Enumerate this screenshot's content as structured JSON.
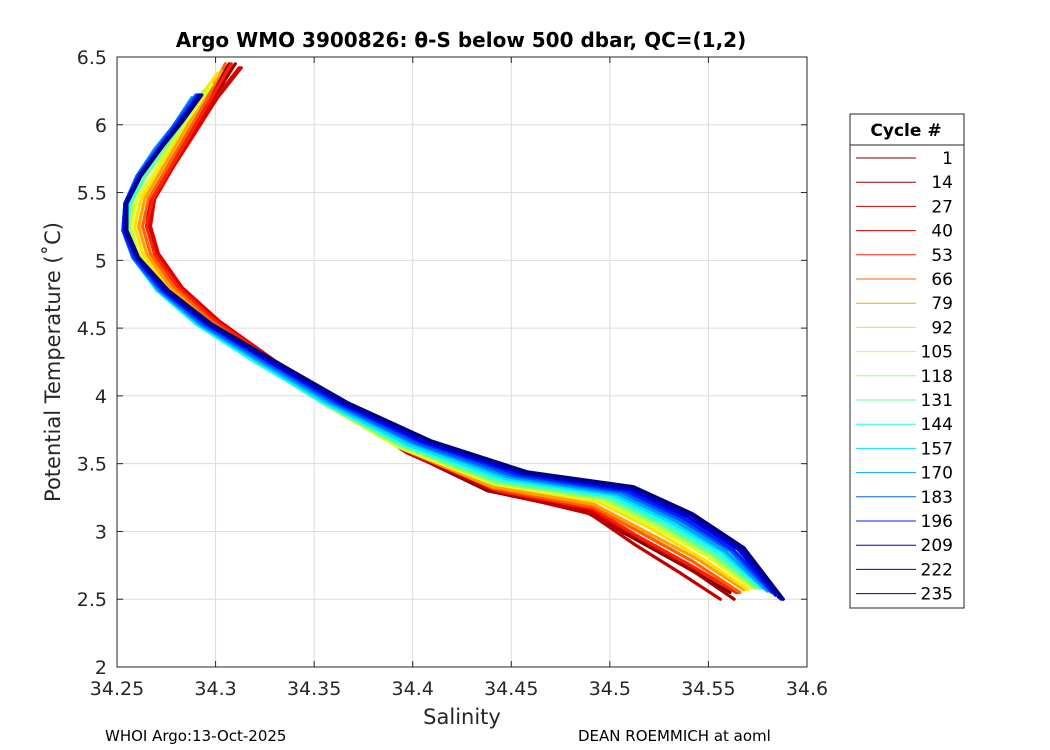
{
  "chart_data": {
    "type": "line",
    "title": "Argo WMO 3900826: θ-S below 500 dbar,  QC=(1,2)",
    "xlabel": "Salinity",
    "ylabel": "Potential Temperature (˚C)",
    "xlim": [
      34.25,
      34.6
    ],
    "ylim": [
      2,
      6.5
    ],
    "xticks": [
      34.25,
      34.3,
      34.35,
      34.4,
      34.45,
      34.5,
      34.55,
      34.6
    ],
    "xtick_labels": [
      "34.25",
      "34.3",
      "34.35",
      "34.4",
      "34.45",
      "34.5",
      "34.55",
      "34.6"
    ],
    "yticks": [
      2,
      2.5,
      3,
      3.5,
      4,
      4.5,
      5,
      5.5,
      6,
      6.5
    ],
    "ytick_labels": [
      "2",
      "2.5",
      "3",
      "3.5",
      "4",
      "4.5",
      "5",
      "5.5",
      "6",
      "6.5"
    ],
    "grid": true,
    "legend_title": "Cycle #",
    "legend_position": "outside-right",
    "colormap": "jet",
    "series": [
      {
        "name": "1",
        "color": "#800000",
        "salinity": [
          34.307,
          34.296,
          34.287,
          34.276,
          34.267,
          34.265,
          34.269,
          34.281,
          34.3,
          34.328,
          34.358,
          34.395,
          34.438,
          34.487,
          34.512,
          34.537,
          34.561
        ],
        "theta": [
          6.45,
          6.2,
          5.95,
          5.7,
          5.45,
          5.25,
          5.05,
          4.8,
          4.55,
          4.25,
          3.95,
          3.6,
          3.3,
          3.15,
          2.95,
          2.75,
          2.55
        ]
      },
      {
        "name": "14",
        "color": "#A00000",
        "salinity": [
          34.31,
          34.299,
          34.289,
          34.278,
          34.268,
          34.266,
          34.27,
          34.282,
          34.301,
          34.329,
          34.359,
          34.396,
          34.44,
          34.489,
          34.514,
          34.538,
          34.563
        ],
        "theta": [
          6.45,
          6.2,
          5.95,
          5.7,
          5.45,
          5.25,
          5.05,
          4.8,
          4.55,
          4.25,
          3.95,
          3.6,
          3.3,
          3.15,
          2.95,
          2.75,
          2.5
        ]
      },
      {
        "name": "27",
        "color": "#C00000",
        "salinity": [
          34.313,
          34.301,
          34.29,
          34.279,
          34.268,
          34.265,
          34.27,
          34.282,
          34.302,
          34.33,
          34.36,
          34.397,
          34.441,
          34.49,
          34.513,
          34.535,
          34.556
        ],
        "theta": [
          6.42,
          6.2,
          5.95,
          5.7,
          5.45,
          5.25,
          5.05,
          4.8,
          4.55,
          4.25,
          3.95,
          3.58,
          3.3,
          3.13,
          2.9,
          2.7,
          2.5
        ]
      },
      {
        "name": "40",
        "color": "#E00000",
        "salinity": [
          34.312,
          34.3,
          34.29,
          34.279,
          34.269,
          34.267,
          34.271,
          34.283,
          34.302,
          34.331,
          34.362,
          34.4,
          34.443,
          34.49,
          34.515,
          34.54,
          34.565
        ],
        "theta": [
          6.42,
          6.2,
          5.95,
          5.7,
          5.45,
          5.25,
          5.05,
          4.8,
          4.55,
          4.25,
          3.95,
          3.6,
          3.32,
          3.16,
          2.95,
          2.75,
          2.55
        ]
      },
      {
        "name": "53",
        "color": "#FF2000",
        "salinity": [
          34.308,
          34.298,
          34.288,
          34.278,
          34.268,
          34.265,
          34.269,
          34.281,
          34.3,
          34.33,
          34.362,
          34.399,
          34.443,
          34.491,
          34.516,
          34.541,
          34.564
        ],
        "theta": [
          6.45,
          6.2,
          5.95,
          5.7,
          5.45,
          5.25,
          5.05,
          4.8,
          4.55,
          4.25,
          3.95,
          3.6,
          3.3,
          3.17,
          2.95,
          2.75,
          2.55
        ]
      },
      {
        "name": "66",
        "color": "#FF6000",
        "salinity": [
          34.305,
          34.296,
          34.286,
          34.276,
          34.266,
          34.263,
          34.267,
          34.279,
          34.298,
          34.327,
          34.358,
          34.396,
          34.441,
          34.492,
          34.517,
          34.542,
          34.566
        ],
        "theta": [
          6.45,
          6.2,
          5.95,
          5.7,
          5.45,
          5.25,
          5.05,
          4.8,
          4.55,
          4.25,
          3.95,
          3.6,
          3.32,
          3.18,
          2.98,
          2.78,
          2.55
        ]
      },
      {
        "name": "79",
        "color": "#FFA000",
        "salinity": [
          34.303,
          34.294,
          34.284,
          34.274,
          34.264,
          34.261,
          34.265,
          34.277,
          34.296,
          34.325,
          34.356,
          34.394,
          34.44,
          34.492,
          34.518,
          34.544,
          34.568
        ],
        "theta": [
          6.4,
          6.2,
          5.95,
          5.7,
          5.45,
          5.25,
          5.05,
          4.8,
          4.55,
          4.25,
          3.95,
          3.62,
          3.33,
          3.2,
          3.0,
          2.8,
          2.57
        ]
      },
      {
        "name": "92",
        "color": "#FFE000",
        "salinity": [
          34.301,
          34.292,
          34.282,
          34.272,
          34.262,
          34.259,
          34.263,
          34.275,
          34.294,
          34.323,
          34.355,
          34.394,
          34.441,
          34.494,
          34.521,
          34.547,
          34.57
        ],
        "theta": [
          6.38,
          6.2,
          5.95,
          5.7,
          5.45,
          5.25,
          5.05,
          4.8,
          4.55,
          4.25,
          3.95,
          3.62,
          3.35,
          3.22,
          3.02,
          2.8,
          2.57
        ]
      },
      {
        "name": "105",
        "color": "#DFFF20",
        "salinity": [
          34.298,
          34.289,
          34.279,
          34.269,
          34.26,
          34.257,
          34.261,
          34.273,
          34.293,
          34.322,
          34.354,
          34.393,
          34.441,
          34.495,
          34.523,
          34.549,
          34.572
        ],
        "theta": [
          6.3,
          6.1,
          5.9,
          5.65,
          5.45,
          5.25,
          5.05,
          4.8,
          4.55,
          4.25,
          3.95,
          3.62,
          3.35,
          3.23,
          3.03,
          2.82,
          2.58
        ]
      },
      {
        "name": "118",
        "color": "#A0FF60",
        "salinity": [
          34.294,
          34.285,
          34.276,
          34.266,
          34.258,
          34.256,
          34.26,
          34.272,
          34.292,
          34.321,
          34.354,
          34.394,
          34.442,
          34.497,
          34.525,
          34.551,
          34.574
        ],
        "theta": [
          6.25,
          6.05,
          5.85,
          5.65,
          5.45,
          5.25,
          5.05,
          4.8,
          4.55,
          4.25,
          3.95,
          3.63,
          3.36,
          3.24,
          3.04,
          2.83,
          2.58
        ]
      },
      {
        "name": "131",
        "color": "#60FFA0",
        "salinity": [
          34.29,
          34.282,
          34.273,
          34.264,
          34.257,
          34.255,
          34.259,
          34.271,
          34.291,
          34.321,
          34.354,
          34.395,
          34.443,
          34.499,
          34.527,
          34.553,
          34.576
        ],
        "theta": [
          6.2,
          6.0,
          5.82,
          5.62,
          5.42,
          5.22,
          5.02,
          4.78,
          4.53,
          4.25,
          3.95,
          3.63,
          3.37,
          3.25,
          3.05,
          2.83,
          2.58
        ]
      },
      {
        "name": "144",
        "color": "#20FFE0",
        "salinity": [
          34.288,
          34.28,
          34.271,
          34.262,
          34.256,
          34.254,
          34.258,
          34.27,
          34.29,
          34.32,
          34.355,
          34.396,
          34.445,
          34.5,
          34.529,
          34.555,
          34.577
        ],
        "theta": [
          6.2,
          6.0,
          5.82,
          5.62,
          5.42,
          5.22,
          5.02,
          4.78,
          4.53,
          4.25,
          3.95,
          3.64,
          3.38,
          3.26,
          3.06,
          2.84,
          2.58
        ]
      },
      {
        "name": "157",
        "color": "#00E0FF",
        "salinity": [
          34.287,
          34.279,
          34.27,
          34.261,
          34.255,
          34.254,
          34.258,
          34.271,
          34.291,
          34.322,
          34.356,
          34.398,
          34.447,
          34.502,
          34.531,
          34.557,
          34.579
        ],
        "theta": [
          6.18,
          6.0,
          5.82,
          5.62,
          5.42,
          5.22,
          5.02,
          4.78,
          4.53,
          4.25,
          3.95,
          3.64,
          3.39,
          3.27,
          3.07,
          2.85,
          2.57
        ]
      },
      {
        "name": "170",
        "color": "#00A0FF",
        "salinity": [
          34.288,
          34.279,
          34.269,
          34.26,
          34.254,
          34.253,
          34.258,
          34.271,
          34.292,
          34.323,
          34.358,
          34.4,
          34.449,
          34.504,
          34.533,
          34.559,
          34.58
        ],
        "theta": [
          6.2,
          6.0,
          5.82,
          5.62,
          5.42,
          5.22,
          5.02,
          4.78,
          4.53,
          4.25,
          3.95,
          3.65,
          3.4,
          3.28,
          3.08,
          2.85,
          2.56
        ]
      },
      {
        "name": "183",
        "color": "#0060FF",
        "salinity": [
          34.29,
          34.28,
          34.27,
          34.26,
          34.254,
          34.253,
          34.258,
          34.272,
          34.293,
          34.325,
          34.36,
          34.402,
          34.451,
          34.506,
          34.535,
          34.561,
          34.582
        ],
        "theta": [
          6.22,
          6.02,
          5.82,
          5.62,
          5.42,
          5.22,
          5.02,
          4.78,
          4.53,
          4.25,
          3.95,
          3.65,
          3.41,
          3.29,
          3.09,
          2.86,
          2.55
        ]
      },
      {
        "name": "196",
        "color": "#0020FF",
        "salinity": [
          34.291,
          34.281,
          34.271,
          34.261,
          34.254,
          34.253,
          34.259,
          34.273,
          34.295,
          34.327,
          34.362,
          34.404,
          34.453,
          34.508,
          34.537,
          34.563,
          34.584
        ],
        "theta": [
          6.22,
          6.02,
          5.82,
          5.62,
          5.42,
          5.22,
          5.02,
          4.78,
          4.53,
          4.25,
          3.95,
          3.66,
          3.42,
          3.3,
          3.1,
          2.86,
          2.53
        ]
      },
      {
        "name": "209",
        "color": "#0000E0",
        "salinity": [
          34.292,
          34.282,
          34.271,
          34.261,
          34.254,
          34.254,
          34.26,
          34.274,
          34.296,
          34.328,
          34.364,
          34.406,
          34.455,
          34.51,
          34.539,
          34.565,
          34.586
        ],
        "theta": [
          6.22,
          6.02,
          5.82,
          5.62,
          5.42,
          5.22,
          5.02,
          4.78,
          4.53,
          4.25,
          3.95,
          3.66,
          3.43,
          3.31,
          3.11,
          2.87,
          2.51
        ]
      },
      {
        "name": "222",
        "color": "#0000B0",
        "salinity": [
          34.292,
          34.282,
          34.272,
          34.262,
          34.255,
          34.254,
          34.26,
          34.275,
          34.297,
          34.33,
          34.366,
          34.408,
          34.457,
          34.511,
          34.541,
          34.567,
          34.587
        ],
        "theta": [
          6.22,
          6.02,
          5.82,
          5.62,
          5.42,
          5.22,
          5.02,
          4.78,
          4.53,
          4.25,
          3.95,
          3.67,
          3.43,
          3.32,
          3.12,
          2.87,
          2.5
        ]
      },
      {
        "name": "235",
        "color": "#000080",
        "salinity": [
          34.293,
          34.283,
          34.272,
          34.262,
          34.255,
          34.255,
          34.261,
          34.276,
          34.298,
          34.331,
          34.367,
          34.409,
          34.458,
          34.512,
          34.542,
          34.568,
          34.588
        ],
        "theta": [
          6.22,
          6.02,
          5.82,
          5.62,
          5.42,
          5.22,
          5.02,
          4.78,
          4.53,
          4.25,
          3.95,
          3.67,
          3.44,
          3.33,
          3.13,
          2.88,
          2.5
        ]
      }
    ]
  },
  "footer": {
    "left": "WHOI Argo:13-Oct-2025",
    "right": "DEAN ROEMMICH at aoml"
  }
}
